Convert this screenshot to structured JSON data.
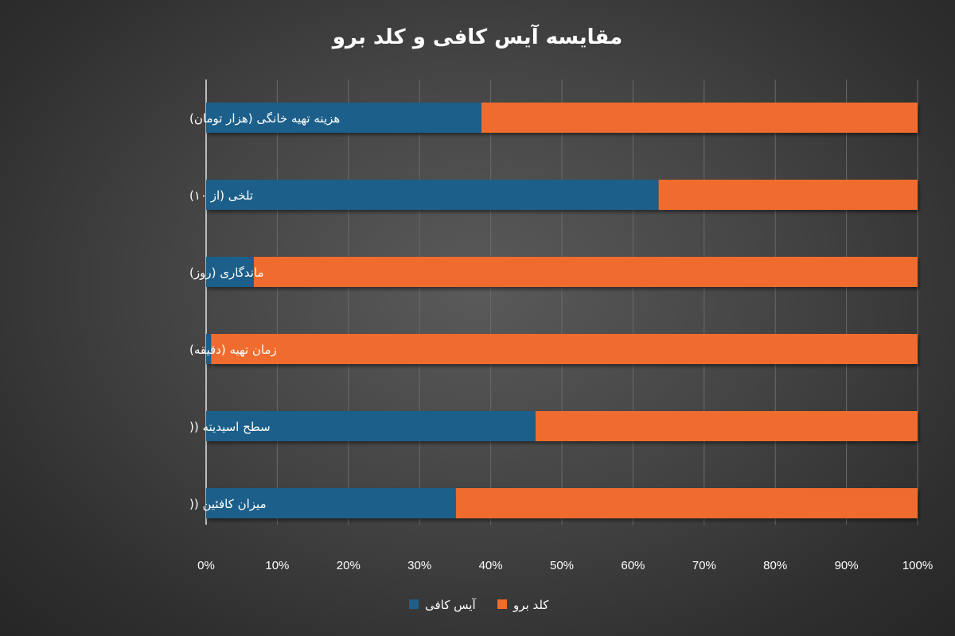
{
  "chart_data": {
    "type": "bar",
    "orientation": "horizontal",
    "stacked": "percent",
    "title": "مقایسه آیس کافی و کلد برو",
    "xlabel": "",
    "ylabel": "",
    "xlim": [
      0,
      100
    ],
    "x_ticks": [
      "0%",
      "10%",
      "20%",
      "30%",
      "40%",
      "50%",
      "60%",
      "70%",
      "80%",
      "90%",
      "100%"
    ],
    "categories": [
      "هزینه تهیه خانگی (هزار تومان)",
      "تلخی (از ۱۰)",
      "ماندگاری (روز)",
      "زمان تهیه (دقیقه)",
      "سطح اسیدیته (( ",
      "میزان کافئین (( "
    ],
    "series": [
      {
        "name": "آیس کافی",
        "color": "#1f5f8a",
        "values": [
          38.7,
          63.6,
          6.7,
          0.7,
          46.3,
          35.1
        ]
      },
      {
        "name": "کلد برو",
        "color": "#ef6c2d",
        "values": [
          61.3,
          36.4,
          93.3,
          99.3,
          53.7,
          64.9
        ]
      }
    ],
    "grid": true,
    "legend": "bottom"
  }
}
